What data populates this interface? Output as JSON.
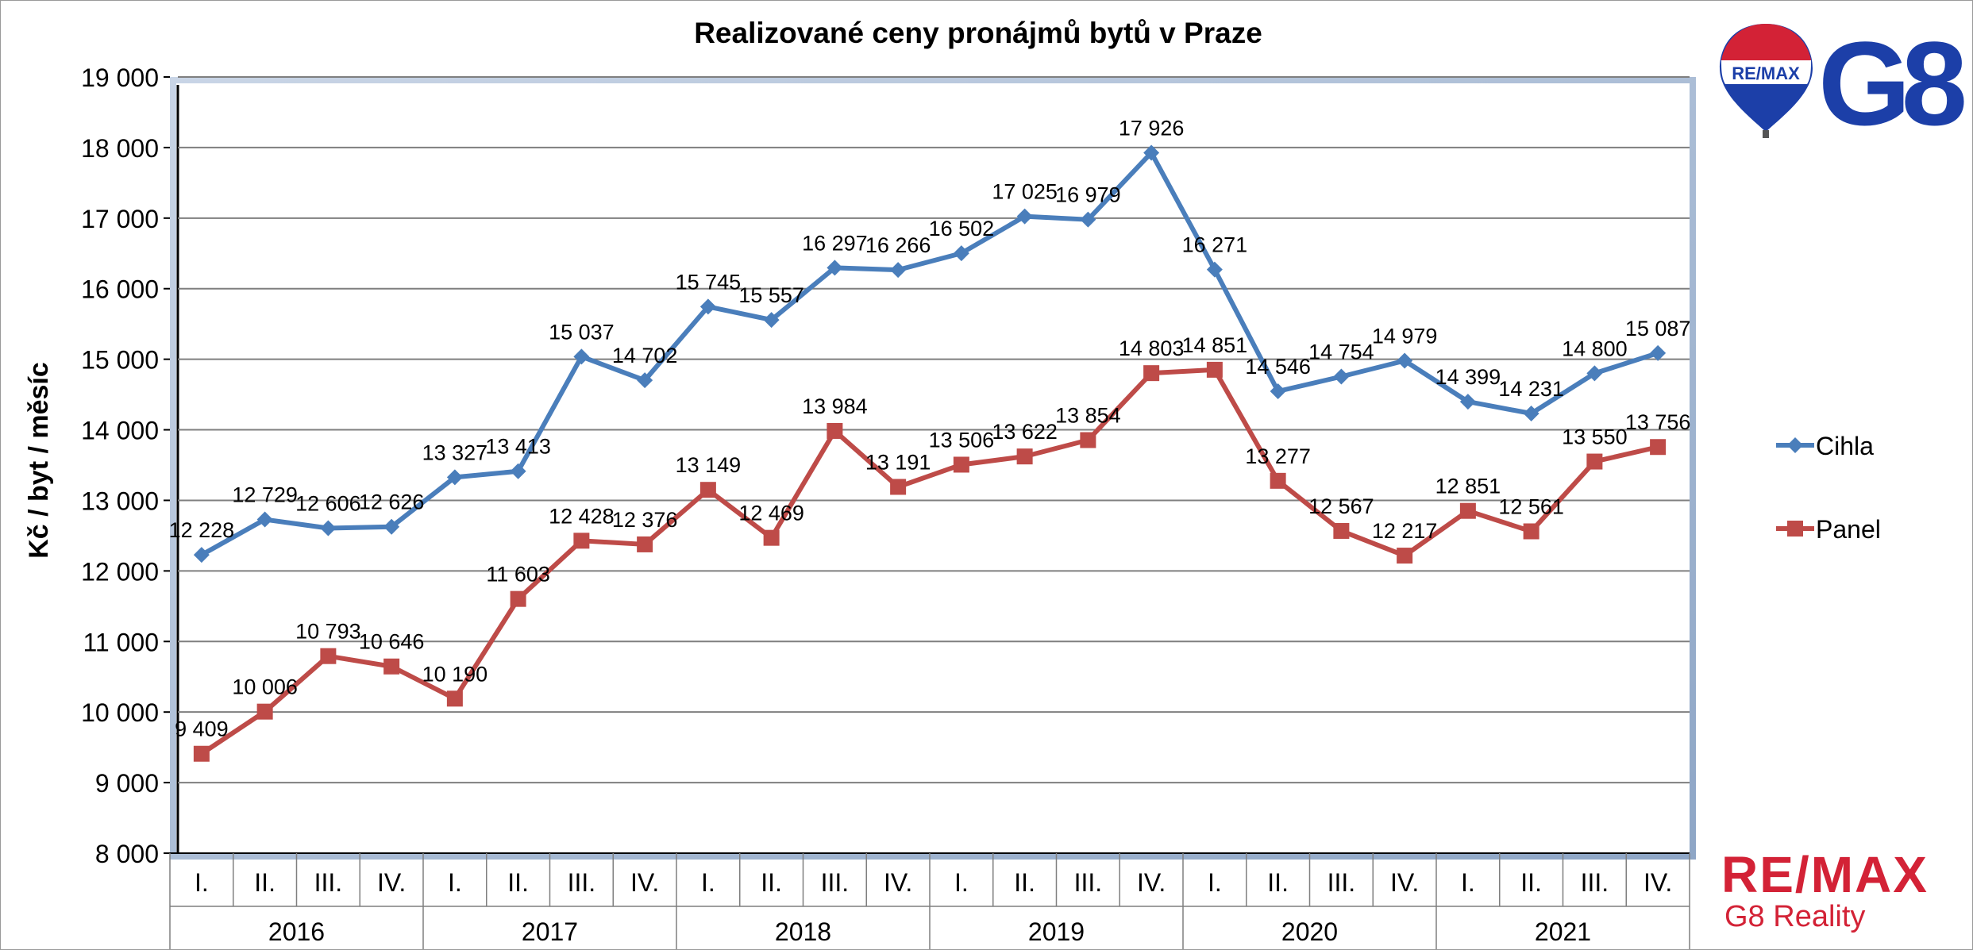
{
  "chart_data": {
    "type": "line",
    "title": "Realizované ceny pronájmů bytů v Praze",
    "ylabel": "Kč / byt / měsíc",
    "xlabel": "",
    "ylim": [
      8000,
      19000
    ],
    "yticks": [
      8000,
      9000,
      10000,
      11000,
      12000,
      13000,
      14000,
      15000,
      16000,
      17000,
      18000,
      19000
    ],
    "ytick_labels": [
      "8 000",
      "9 000",
      "10 000",
      "11 000",
      "12 000",
      "13 000",
      "14 000",
      "15 000",
      "16 000",
      "17 000",
      "18 000",
      "19 000"
    ],
    "grid": true,
    "legend_position": "right",
    "quarters": [
      "I.",
      "II.",
      "III.",
      "IV.",
      "I.",
      "II.",
      "III.",
      "IV.",
      "I.",
      "II.",
      "III.",
      "IV.",
      "I.",
      "II.",
      "III.",
      "IV.",
      "I.",
      "II.",
      "III.",
      "IV.",
      "I.",
      "II.",
      "III.",
      "IV."
    ],
    "years": [
      "2016",
      "2017",
      "2018",
      "2019",
      "2020",
      "2021"
    ],
    "series": [
      {
        "name": "Cihla",
        "color": "#4a7ebb",
        "marker": "diamond",
        "values": [
          12228,
          12729,
          12606,
          12626,
          13327,
          13413,
          15037,
          14702,
          15745,
          15557,
          16297,
          16266,
          16502,
          17025,
          16979,
          17926,
          16271,
          14546,
          14754,
          14979,
          14399,
          14231,
          14800,
          15087
        ],
        "labels": [
          "12 228",
          "12 729",
          "12 606",
          "12 626",
          "13 327",
          "13 413",
          "15 037",
          "14 702",
          "15 745",
          "15 557",
          "16 297",
          "16 266",
          "16 502",
          "17 025",
          "16 979",
          "17 926",
          "16 271",
          "14 546",
          "14 754",
          "14 979",
          "14 399",
          "14 231",
          "14 800",
          "15 087"
        ]
      },
      {
        "name": "Panel",
        "color": "#be4b48",
        "marker": "square",
        "values": [
          9409,
          10006,
          10793,
          10646,
          10190,
          11603,
          12428,
          12376,
          13149,
          12469,
          13984,
          13191,
          13506,
          13622,
          13854,
          14803,
          14851,
          13277,
          12567,
          12217,
          12851,
          12561,
          13550,
          13756
        ],
        "labels": [
          "9 409",
          "10 006",
          "10 793",
          "10 646",
          "10 190",
          "11 603",
          "12 428",
          "12 376",
          "13 149",
          "12 469",
          "13 984",
          "13 191",
          "13 506",
          "13 622",
          "13 854",
          "14 803",
          "14 851",
          "13 277",
          "12 567",
          "12 217",
          "12 851",
          "12 561",
          "13 550",
          "13 756"
        ]
      }
    ]
  },
  "branding": {
    "balloon_text": "RE/MAX",
    "top_logo": "G8",
    "bottom_logo": "RE/MAX",
    "bottom_sub": "G8 Reality",
    "colors": {
      "blue": "#1c3fa8",
      "red": "#d32236"
    }
  }
}
